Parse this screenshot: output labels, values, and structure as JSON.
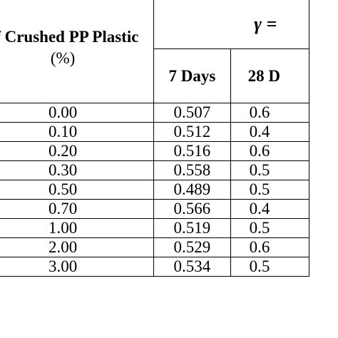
{
  "table": {
    "header": {
      "main_label_line1": "of Crushed PP Plastic",
      "main_label_line2": "(%)",
      "group_label": "γ =",
      "col_7": "7 Days",
      "col_28": "28 D"
    },
    "rows": [
      {
        "pct": "0.00",
        "d7": "0.507",
        "d28": "0.6"
      },
      {
        "pct": "0.10",
        "d7": "0.512",
        "d28": "0.4"
      },
      {
        "pct": "0.20",
        "d7": "0.516",
        "d28": "0.6"
      },
      {
        "pct": "0.30",
        "d7": "0.558",
        "d28": "0.5"
      },
      {
        "pct": "0.50",
        "d7": "0.489",
        "d28": "0.5"
      },
      {
        "pct": "0.70",
        "d7": "0.566",
        "d28": "0.4"
      },
      {
        "pct": "1.00",
        "d7": "0.519",
        "d28": "0.5"
      },
      {
        "pct": "2.00",
        "d7": "0.529",
        "d28": "0.6"
      },
      {
        "pct": "3.00",
        "d7": "0.534",
        "d28": "0.5"
      }
    ]
  }
}
